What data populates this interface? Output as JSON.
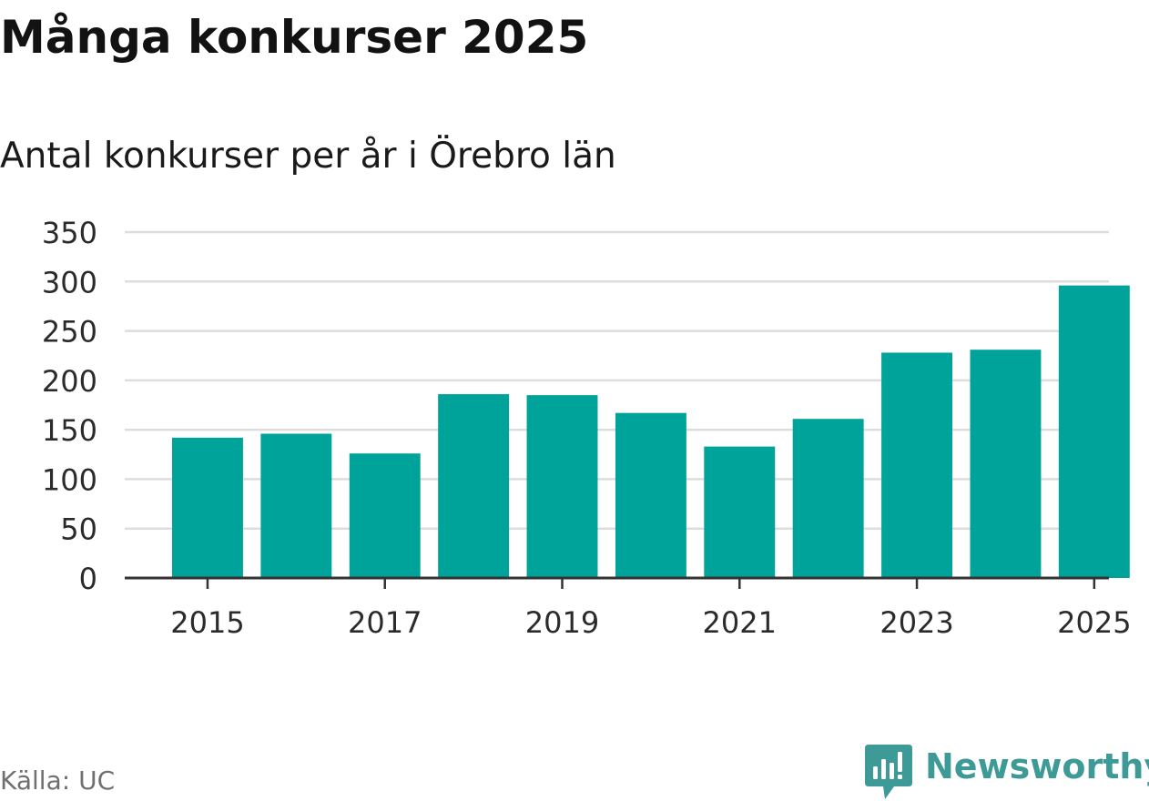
{
  "title": "Många konkurser 2025",
  "subtitle": "Antal konkurser per år i Örebro län",
  "source": "Källa: UC",
  "brand": {
    "name": "Newsworthy",
    "logo_icon": "newsworthy-logo-icon",
    "color": "#3d9a96"
  },
  "colors": {
    "bar": "#00a39a",
    "grid": "#dddddd",
    "axis": "#333333",
    "tick_text": "#2b2b2b"
  },
  "chart_data": {
    "type": "bar",
    "title": "Många konkurser 2025",
    "subtitle": "Antal konkurser per år i Örebro län",
    "xlabel": "",
    "ylabel": "",
    "categories": [
      "2015",
      "2016",
      "2017",
      "2018",
      "2019",
      "2020",
      "2021",
      "2022",
      "2023",
      "2024",
      "2025"
    ],
    "values": [
      142,
      146,
      126,
      186,
      185,
      167,
      133,
      161,
      228,
      231,
      296
    ],
    "x_tick_labels": [
      "2015",
      "2017",
      "2019",
      "2021",
      "2023",
      "2025"
    ],
    "y_ticks": [
      0,
      50,
      100,
      150,
      200,
      250,
      300,
      350
    ],
    "ylim": [
      0,
      350
    ],
    "grid": true,
    "legend": "none"
  }
}
